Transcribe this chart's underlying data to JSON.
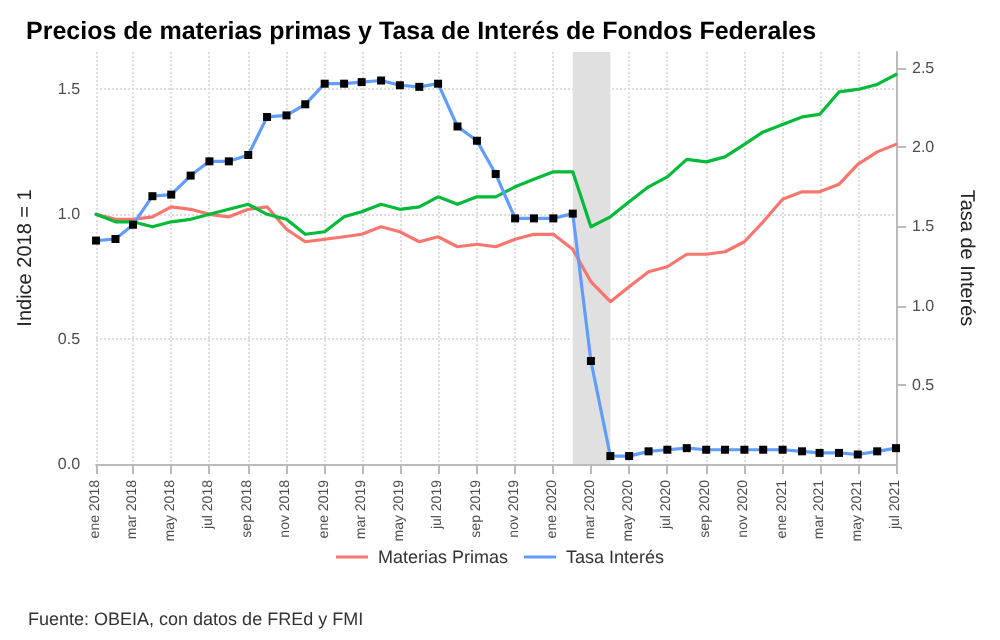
{
  "chart_data": {
    "type": "line",
    "title": "Precios de materias primas y Tasa de Interés de Fondos Federales",
    "xlabel": null,
    "ylabel": "Indice 2018 = 1",
    "y2label": "Tasa de Interés",
    "annotations": [
      "Fuente: OBEIA, con datos de FREd y FMI"
    ],
    "x": [
      "2018-01",
      "2018-02",
      "2018-03",
      "2018-04",
      "2018-05",
      "2018-06",
      "2018-07",
      "2018-08",
      "2018-09",
      "2018-10",
      "2018-11",
      "2018-12",
      "2019-01",
      "2019-02",
      "2019-03",
      "2019-04",
      "2019-05",
      "2019-06",
      "2019-07",
      "2019-08",
      "2019-09",
      "2019-10",
      "2019-11",
      "2019-12",
      "2020-01",
      "2020-02",
      "2020-03",
      "2020-04",
      "2020-05",
      "2020-06",
      "2020-07",
      "2020-08",
      "2020-09",
      "2020-10",
      "2020-11",
      "2020-12",
      "2021-01",
      "2021-02",
      "2021-03",
      "2021-04",
      "2021-05",
      "2021-06",
      "2021-07"
    ],
    "series": [
      {
        "name": "Materias Primas",
        "color": "#f8766d",
        "marker": "none",
        "values": [
          1.0,
          0.98,
          0.98,
          0.99,
          1.03,
          1.02,
          1.0,
          0.99,
          1.02,
          1.03,
          0.94,
          0.89,
          0.9,
          0.91,
          0.92,
          0.95,
          0.93,
          0.89,
          0.91,
          0.87,
          0.88,
          0.87,
          0.9,
          0.92,
          0.92,
          0.86,
          0.73,
          0.65,
          0.71,
          0.77,
          0.79,
          0.84,
          0.84,
          0.85,
          0.89,
          0.97,
          1.06,
          1.09,
          1.09,
          1.12,
          1.2,
          1.25,
          1.28
        ]
      },
      {
        "color": "#00ba38",
        "marker": "none",
        "values": [
          1.0,
          0.97,
          0.97,
          0.95,
          0.97,
          0.98,
          1.0,
          1.02,
          1.04,
          1.0,
          0.98,
          0.92,
          0.93,
          0.99,
          1.01,
          1.04,
          1.02,
          1.03,
          1.07,
          1.04,
          1.07,
          1.07,
          1.11,
          1.14,
          1.17,
          1.17,
          0.95,
          0.99,
          1.05,
          1.11,
          1.15,
          1.22,
          1.21,
          1.23,
          1.28,
          1.33,
          1.36,
          1.39,
          1.4,
          1.49,
          1.5,
          1.52,
          1.56
        ]
      },
      {
        "name": "Tasa Interés",
        "color": "#619cff",
        "marker": "square",
        "axis": "y2",
        "values": [
          1.41,
          1.42,
          1.51,
          1.69,
          1.7,
          1.82,
          1.91,
          1.91,
          1.95,
          2.19,
          2.2,
          2.27,
          2.4,
          2.4,
          2.41,
          2.42,
          2.39,
          2.38,
          2.4,
          2.13,
          2.04,
          1.83,
          1.55,
          1.55,
          1.55,
          1.58,
          0.65,
          0.05,
          0.05,
          0.08,
          0.09,
          0.1,
          0.09,
          0.09,
          0.09,
          0.09,
          0.09,
          0.08,
          0.07,
          0.07,
          0.06,
          0.08,
          0.1
        ]
      }
    ],
    "xlim": [
      "2018-01",
      "2021-07"
    ],
    "xticks": [
      {
        "value": "2018-01",
        "label": "ene 2018"
      },
      {
        "value": "2018-03",
        "label": "mar 2018"
      },
      {
        "value": "2018-05",
        "label": "may 2018"
      },
      {
        "value": "2018-07",
        "label": "jul 2018"
      },
      {
        "value": "2018-09",
        "label": "sep 2018"
      },
      {
        "value": "2018-11",
        "label": "nov 2018"
      },
      {
        "value": "2019-01",
        "label": "ene 2019"
      },
      {
        "value": "2019-03",
        "label": "mar 2019"
      },
      {
        "value": "2019-05",
        "label": "may 2019"
      },
      {
        "value": "2019-07",
        "label": "jul 2019"
      },
      {
        "value": "2019-09",
        "label": "sep 2019"
      },
      {
        "value": "2019-11",
        "label": "nov 2019"
      },
      {
        "value": "2020-01",
        "label": "ene 2020"
      },
      {
        "value": "2020-03",
        "label": "mar 2020"
      },
      {
        "value": "2020-05",
        "label": "may 2020"
      },
      {
        "value": "2020-07",
        "label": "jul 2020"
      },
      {
        "value": "2020-09",
        "label": "sep 2020"
      },
      {
        "value": "2020-11",
        "label": "nov 2020"
      },
      {
        "value": "2021-01",
        "label": "ene 2021"
      },
      {
        "value": "2021-03",
        "label": "mar 2021"
      },
      {
        "value": "2021-05",
        "label": "may 2021"
      },
      {
        "value": "2021-07",
        "label": "jul 2021"
      }
    ],
    "ylim": [
      0,
      1.65
    ],
    "yticks": [
      {
        "value": 0,
        "label": "0.0"
      },
      {
        "value": 0.5,
        "label": "0.5"
      },
      {
        "value": 1,
        "label": "1.0"
      },
      {
        "value": 1.5,
        "label": "1.5"
      }
    ],
    "y2lim": [
      0,
      2.6
    ],
    "y2ticks": [
      {
        "value": 0.5,
        "label": "0.5"
      },
      {
        "value": 1,
        "label": "1.0"
      },
      {
        "value": 1.5,
        "label": "1.5"
      },
      {
        "value": 2,
        "label": "2.0"
      },
      {
        "value": 2.5,
        "label": "2.5"
      }
    ],
    "bands": [
      {
        "axis": "x",
        "from": "2020-02",
        "to": "2020-04",
        "color": "#e0e0e0"
      }
    ],
    "grid": true,
    "legend": "bottom",
    "line_style": "solid"
  }
}
